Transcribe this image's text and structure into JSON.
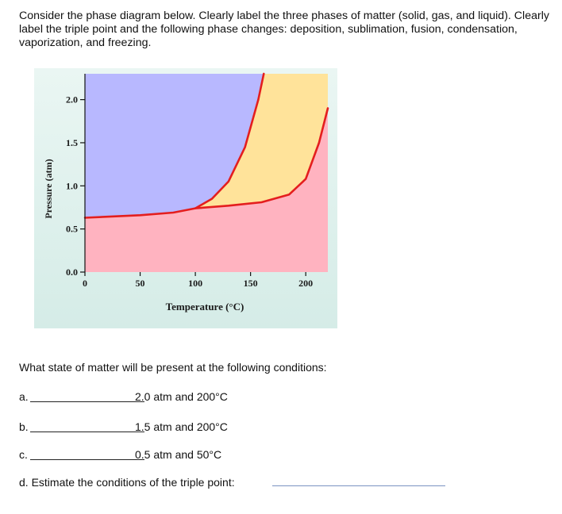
{
  "intro": "Consider the phase diagram below. Clearly label the three phases of matter (solid, gas, and liquid). Clearly label the triple point and the following phase changes: deposition, sublimation, fusion, condensation, vaporization, and freezing.",
  "chart_data": {
    "type": "area",
    "xlabel": "Temperature (°C)",
    "ylabel": "Pressure (atm)",
    "xlim": [
      0,
      220
    ],
    "ylim": [
      0,
      2.3
    ],
    "x_ticks": [
      "0",
      "50",
      "100",
      "150",
      "200"
    ],
    "y_ticks": [
      "0.0",
      "0.5",
      "1.0",
      "1.5",
      "2.0"
    ],
    "triple_point": {
      "x": 100,
      "y": 0.74
    },
    "curves": [
      {
        "name": "",
        "points": [
          [
            0,
            0.63
          ],
          [
            50,
            0.66
          ],
          [
            80,
            0.69
          ],
          [
            100,
            0.74
          ],
          [
            115,
            0.85
          ],
          [
            130,
            1.05
          ],
          [
            145,
            1.45
          ],
          [
            157,
            2.0
          ],
          [
            162,
            2.3
          ]
        ]
      },
      {
        "name": "",
        "points": [
          [
            100,
            0.74
          ],
          [
            130,
            0.77
          ],
          [
            160,
            0.81
          ],
          [
            185,
            0.9
          ],
          [
            200,
            1.08
          ],
          [
            212,
            1.5
          ],
          [
            220,
            1.9
          ]
        ]
      }
    ],
    "colors": {
      "solid_region": "#b8b8ff",
      "liquid_region": "#ffe39a",
      "gas_region": "#ffb3c0",
      "curve": "#e41e1e",
      "frame": "#dff1ee"
    }
  },
  "question": "What state of matter will be present at the following conditions:",
  "items": [
    {
      "label": "a.",
      "condition": "2.0 atm and 200°C"
    },
    {
      "label": "b.",
      "condition": "1.5 atm and 200°C"
    },
    {
      "label": "c.",
      "condition": "0.5 atm and 50°C"
    }
  ],
  "triple_question": "d. Estimate the conditions of the triple point:"
}
